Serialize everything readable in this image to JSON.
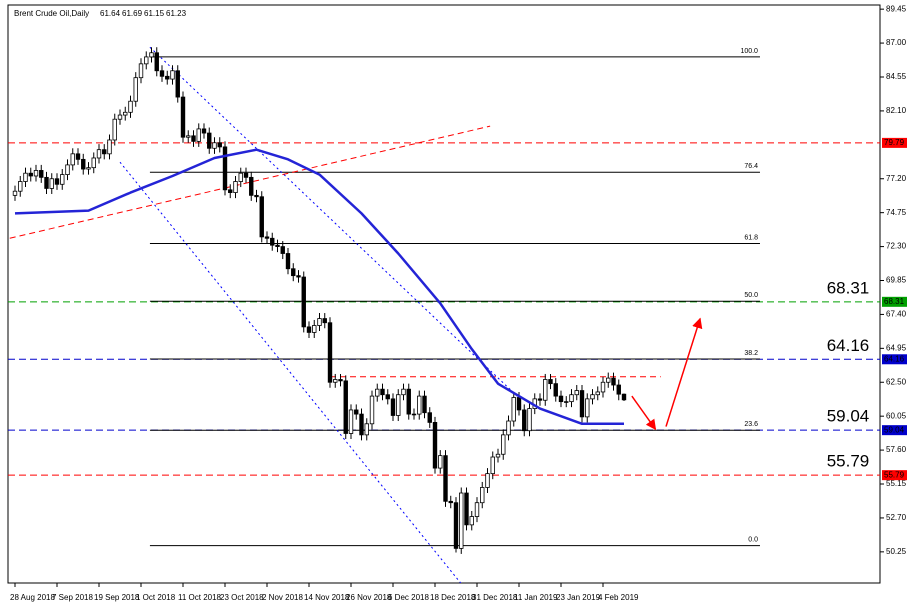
{
  "chart_data": {
    "type": "candlestick",
    "title": "Brent Crude Oil,Daily",
    "categories": [
      "28 Aug 2018",
      null,
      null,
      null,
      null,
      null,
      null,
      null,
      "7 Sep 2018",
      null,
      null,
      null,
      null,
      null,
      null,
      null,
      "19 Sep 2018",
      null,
      null,
      null,
      null,
      null,
      null,
      null,
      "1 Oct 2018",
      null,
      null,
      null,
      null,
      null,
      null,
      null,
      "11 Oct 2018",
      null,
      null,
      null,
      null,
      null,
      null,
      null,
      "23 Oct 2018",
      null,
      null,
      null,
      null,
      null,
      null,
      null,
      "2 Nov 2018",
      null,
      null,
      null,
      null,
      null,
      null,
      null,
      "14 Nov 2018",
      null,
      null,
      null,
      null,
      null,
      null,
      null,
      "26 Nov 2018",
      null,
      null,
      null,
      null,
      null,
      null,
      null,
      "6 Dec 2018",
      null,
      null,
      null,
      null,
      null,
      null,
      null,
      "18 Dec 2018",
      null,
      null,
      null,
      null,
      null,
      null,
      null,
      "31 Dec 2018",
      null,
      null,
      null,
      null,
      null,
      null,
      null,
      "11 Jan 2019",
      null,
      null,
      null,
      null,
      null,
      null,
      null,
      "23 Jan 2019",
      null,
      null,
      null,
      null,
      null,
      null,
      null,
      "4 Feb 2019",
      null,
      null,
      null,
      null
    ],
    "open": [
      76.0,
      76.3,
      77.0,
      77.6,
      77.4,
      77.8,
      77.3,
      76.5,
      77.2,
      76.8,
      77.5,
      78.2,
      79.0,
      78.6,
      77.9,
      78.0,
      78.7,
      79.3,
      79.0,
      80.0,
      81.5,
      81.8,
      82.0,
      82.8,
      84.5,
      85.5,
      86.0,
      86.3,
      85.0,
      84.6,
      84.4,
      85.0,
      83.1,
      80.2,
      80.3,
      79.9,
      80.8,
      80.5,
      79.4,
      79.8,
      79.5,
      76.4,
      76.2,
      77.0,
      77.6,
      77.3,
      76.0,
      75.9,
      73.0,
      72.9,
      72.4,
      72.3,
      71.8,
      70.7,
      70.2,
      70.1,
      66.5,
      66.1,
      66.6,
      67.1,
      66.8,
      62.5,
      62.7,
      62.6,
      58.8,
      60.5,
      60.2,
      58.7,
      59.5,
      61.5,
      62.0,
      61.6,
      61.3,
      60.1,
      61.6,
      62.0,
      60.2,
      60.2,
      61.5,
      60.3,
      59.6,
      56.3,
      57.2,
      53.9,
      53.8,
      50.5,
      54.5,
      52.2,
      52.8,
      53.8,
      54.9,
      55.9,
      57.1,
      57.3,
      58.7,
      59.7,
      61.4,
      60.5,
      59.0,
      60.6,
      61.3,
      61.2,
      62.7,
      62.4,
      61.5,
      61.1,
      61.1,
      61.6,
      61.9,
      60.0,
      61.3,
      61.6,
      61.8,
      62.5,
      62.8,
      62.3,
      61.64
    ],
    "high": [
      76.7,
      77.4,
      78.0,
      78.0,
      78.2,
      78.2,
      77.7,
      77.6,
      77.6,
      77.9,
      78.6,
      79.4,
      79.4,
      79.0,
      78.4,
      79.1,
      79.7,
      79.7,
      80.4,
      81.9,
      82.2,
      82.4,
      83.2,
      84.9,
      85.9,
      86.4,
      86.7,
      86.7,
      85.4,
      85.0,
      85.4,
      85.4,
      83.5,
      80.7,
      80.7,
      81.2,
      81.2,
      80.9,
      80.2,
      80.2,
      79.9,
      76.8,
      77.4,
      78.0,
      78.0,
      77.7,
      76.4,
      76.3,
      73.4,
      73.3,
      72.8,
      72.7,
      72.2,
      71.1,
      70.6,
      70.5,
      66.9,
      67.0,
      67.5,
      67.5,
      67.2,
      63.1,
      63.1,
      63.0,
      60.9,
      60.9,
      60.6,
      59.9,
      61.9,
      62.4,
      62.4,
      62.0,
      61.7,
      62.0,
      62.4,
      62.4,
      60.6,
      61.9,
      61.9,
      60.7,
      60.0,
      57.6,
      57.6,
      54.3,
      54.2,
      54.9,
      54.9,
      53.2,
      54.2,
      55.3,
      56.3,
      57.5,
      57.7,
      59.1,
      60.1,
      61.8,
      61.8,
      60.9,
      61.0,
      61.7,
      61.7,
      63.1,
      63.1,
      62.8,
      61.9,
      61.5,
      62.0,
      62.3,
      62.3,
      61.7,
      62.0,
      62.2,
      62.9,
      63.2,
      63.2,
      62.7,
      61.69
    ],
    "low": [
      75.6,
      75.9,
      76.6,
      77.0,
      77.0,
      76.9,
      76.1,
      76.1,
      76.4,
      76.4,
      77.1,
      77.8,
      78.2,
      77.5,
      77.5,
      77.6,
      78.3,
      78.6,
      78.6,
      79.6,
      81.1,
      81.4,
      81.6,
      82.4,
      84.1,
      85.1,
      85.6,
      84.6,
      84.2,
      84.0,
      84.0,
      82.7,
      79.8,
      79.8,
      79.5,
      79.5,
      80.1,
      79.0,
      79.0,
      79.1,
      76.0,
      75.8,
      75.8,
      76.6,
      76.9,
      75.6,
      75.5,
      72.6,
      72.5,
      72.0,
      71.9,
      71.4,
      70.3,
      69.8,
      69.7,
      66.1,
      65.7,
      65.7,
      66.2,
      66.4,
      62.1,
      62.1,
      62.2,
      58.4,
      58.4,
      59.8,
      58.3,
      58.3,
      59.1,
      61.1,
      61.2,
      60.9,
      59.7,
      59.7,
      61.2,
      59.8,
      59.8,
      59.8,
      59.9,
      59.2,
      55.9,
      55.9,
      53.5,
      53.4,
      50.2,
      50.1,
      51.8,
      51.8,
      52.4,
      53.4,
      54.5,
      55.5,
      56.7,
      56.9,
      58.3,
      59.3,
      60.1,
      58.6,
      58.6,
      60.2,
      60.8,
      60.8,
      62.0,
      61.1,
      60.7,
      60.7,
      60.7,
      61.2,
      59.6,
      59.6,
      60.9,
      61.2,
      61.4,
      62.1,
      61.9,
      61.2,
      61.15
    ],
    "close": [
      76.3,
      77.0,
      77.6,
      77.4,
      77.8,
      77.3,
      76.5,
      77.2,
      76.8,
      77.5,
      78.2,
      79.0,
      78.6,
      77.9,
      78.0,
      78.7,
      79.3,
      79.0,
      80.0,
      81.5,
      81.8,
      82.0,
      82.8,
      84.5,
      85.5,
      86.0,
      86.3,
      85.0,
      84.6,
      84.4,
      85.0,
      83.1,
      80.2,
      80.3,
      79.9,
      80.8,
      80.5,
      79.4,
      79.8,
      79.5,
      76.4,
      76.2,
      77.0,
      77.6,
      77.3,
      76.0,
      75.9,
      73.0,
      72.9,
      72.4,
      72.3,
      71.8,
      70.7,
      70.2,
      70.1,
      66.5,
      66.1,
      66.6,
      67.1,
      66.8,
      62.5,
      62.7,
      62.6,
      58.8,
      60.5,
      60.2,
      58.7,
      59.5,
      61.5,
      62.0,
      61.6,
      61.3,
      60.1,
      61.6,
      62.0,
      60.2,
      60.2,
      61.5,
      60.3,
      59.6,
      56.3,
      57.2,
      53.9,
      53.8,
      50.5,
      54.5,
      52.2,
      52.8,
      53.8,
      54.9,
      55.9,
      57.1,
      57.3,
      58.7,
      59.7,
      61.4,
      60.5,
      59.0,
      60.6,
      61.3,
      61.2,
      62.7,
      62.4,
      61.5,
      61.1,
      61.1,
      61.6,
      61.9,
      60.0,
      61.3,
      61.6,
      61.8,
      62.5,
      62.8,
      62.3,
      61.64,
      61.23
    ],
    "up_color": "#ffffff",
    "down_color": "#000000",
    "ylim": [
      48.0,
      89.75
    ],
    "yticks": [
      89.45,
      {
        "value": 87,
        "label": "87.00"
      },
      84.55,
      {
        "value": 82.1,
        "label": "82.10"
      },
      {
        "value": 77.2,
        "label": "77.20"
      },
      74.75,
      {
        "value": 72.3,
        "label": "72.30"
      },
      69.85,
      {
        "value": 67.4,
        "label": "67.40"
      },
      64.95,
      {
        "value": 62.5,
        "label": "62.50"
      },
      60.05,
      {
        "value": 57.6,
        "label": "57.60"
      },
      55.15,
      {
        "value": 52.7,
        "label": "52.70"
      },
      50.25
    ],
    "moving_average": {
      "color": "#2424d6",
      "x": [
        0,
        14,
        22,
        30,
        38,
        46,
        52,
        58,
        66,
        73,
        81,
        87,
        92,
        100,
        108,
        116
      ],
      "values": [
        74.7,
        74.9,
        76.2,
        77.4,
        78.7,
        79.3,
        78.6,
        77.5,
        74.7,
        71.8,
        68.2,
        64.9,
        62.4,
        60.6,
        59.5,
        59.5
      ]
    },
    "levels": [
      {
        "value": 79.79,
        "color": "#ff0000",
        "callout": false
      },
      {
        "value": 68.31,
        "color": "#00a000",
        "callout": true
      },
      {
        "value": 64.16,
        "color": "#0000cc",
        "callout": true
      },
      {
        "value": 59.04,
        "color": "#0000cc",
        "callout": true
      },
      {
        "value": 55.79,
        "color": "#ff0000",
        "callout": true
      }
    ],
    "fibonacci": {
      "color": "#000000",
      "x": [
        25.7,
        141.9
      ],
      "levels": [
        {
          "label": "100.0",
          "value": 86.0
        },
        {
          "label": "76.4",
          "value": 77.67
        },
        {
          "label": "61.8",
          "value": 72.52
        },
        {
          "label": "50.0",
          "value": 68.35
        },
        {
          "label": "38.2",
          "value": 64.18
        },
        {
          "label": "23.6",
          "value": 59.03
        },
        {
          "label": "0.0",
          "value": 50.7
        }
      ]
    },
    "trendlines": [
      {
        "color": "#ff0000",
        "style": "dashed",
        "x": [
          -1,
          90.5
        ],
        "values": [
          72.9,
          81.0
        ]
      },
      {
        "color": "#0000ff",
        "style": "dotted",
        "x": [
          25.7,
          96.2
        ],
        "values": [
          86.7,
          61.3
        ]
      },
      {
        "color": "#0000ff",
        "style": "dotted",
        "x": [
          20,
          85.1
        ],
        "values": [
          78.4,
          47.9
        ]
      },
      {
        "color": "#ff0000",
        "style": "dashed",
        "x": [
          60,
          123
        ],
        "values": [
          62.9,
          62.9
        ]
      }
    ],
    "arrows": [
      {
        "color": "#ff0000",
        "x": [
          117.5,
          122
        ],
        "values": [
          61.5,
          59.1
        ]
      },
      {
        "color": "#ff0000",
        "x": [
          124,
          130.5
        ],
        "values": [
          59.3,
          67.1
        ]
      }
    ]
  }
}
